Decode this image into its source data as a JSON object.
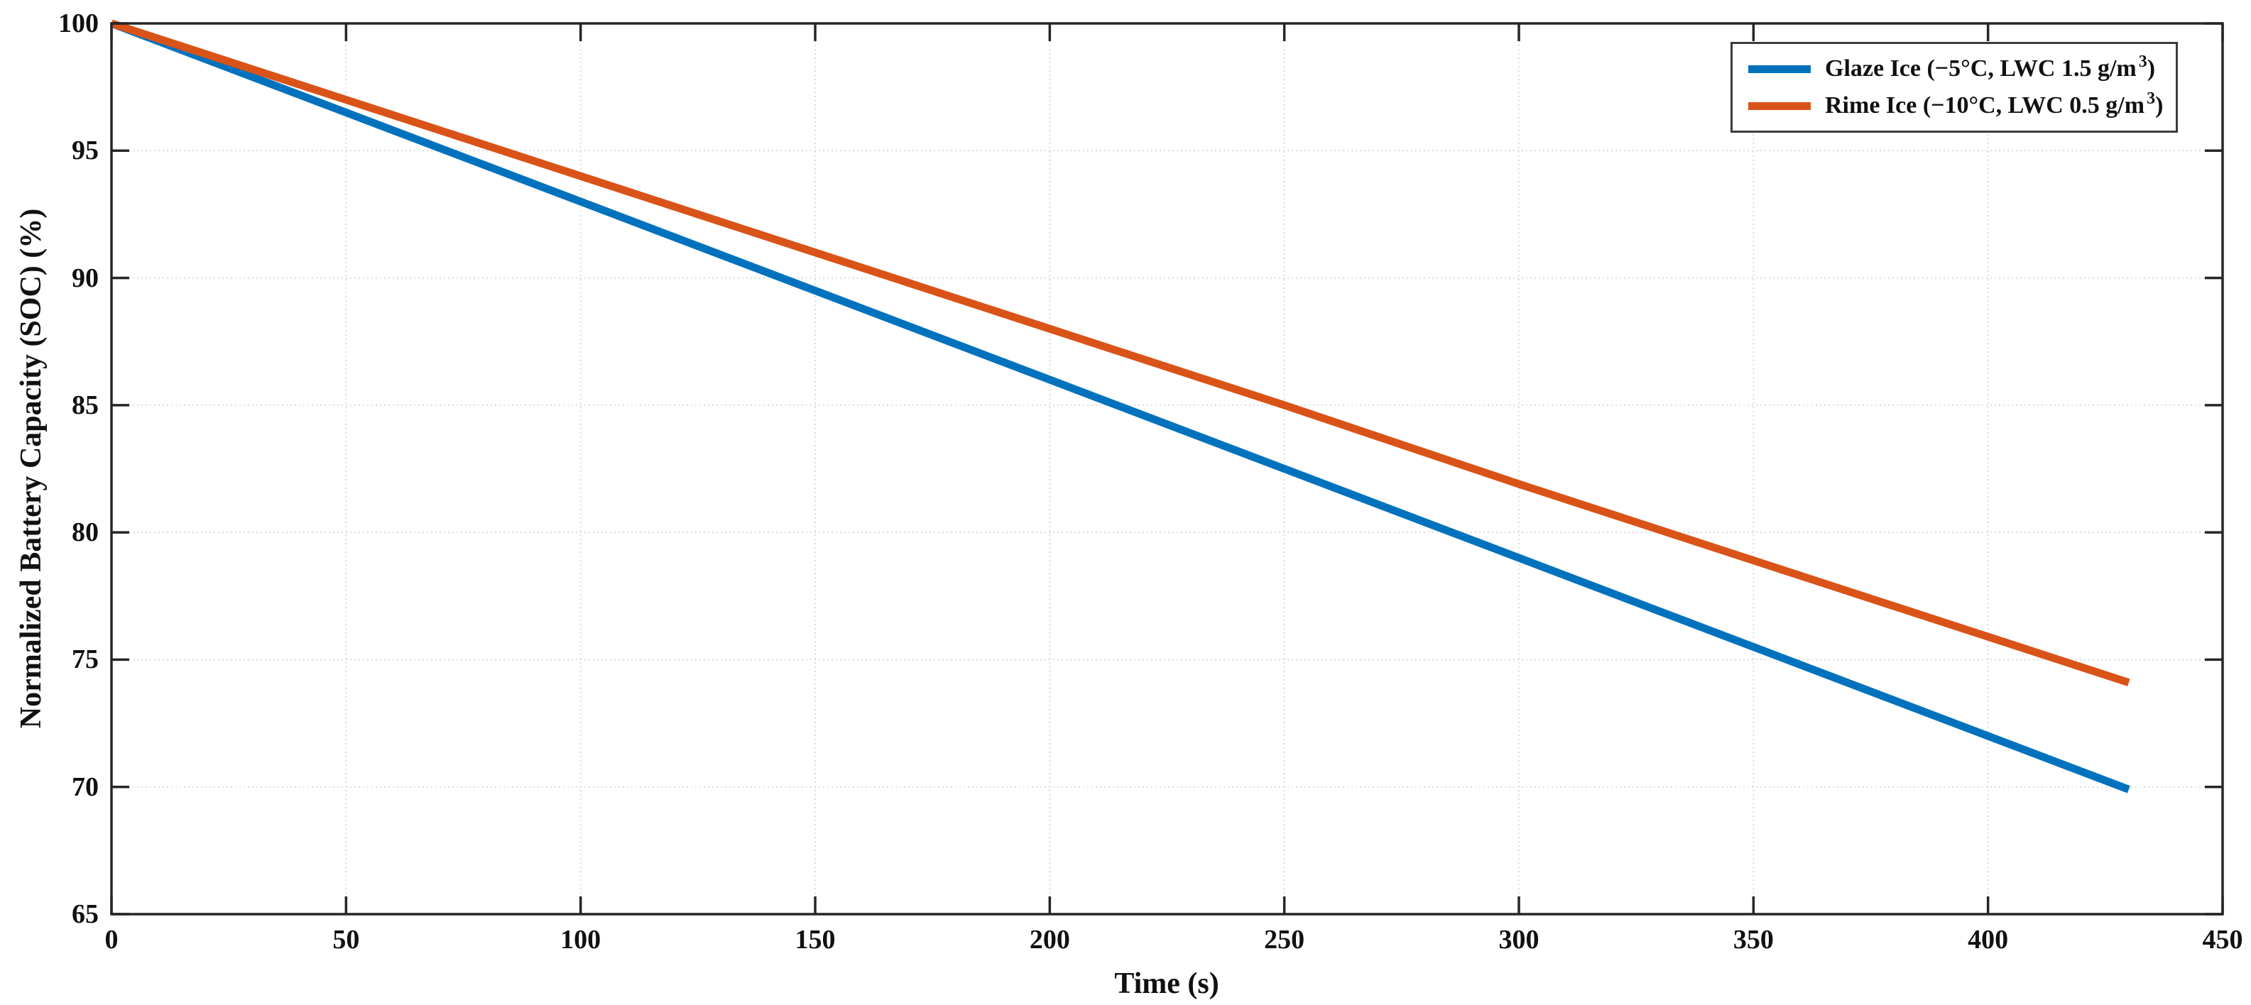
{
  "chart_data": {
    "type": "line",
    "title": "",
    "xlabel": "Time (s)",
    "ylabel": "Normalized Battery Capacity (SOC) (%)",
    "xlim": [
      0,
      450
    ],
    "ylim": [
      65,
      100
    ],
    "x_ticks": [
      0,
      50,
      100,
      150,
      200,
      250,
      300,
      350,
      400,
      450
    ],
    "y_ticks": [
      65,
      70,
      75,
      80,
      85,
      90,
      95,
      100
    ],
    "grid": true,
    "grid_style": "dotted",
    "grid_color": "#dcdcdc",
    "axis_color": "#262626",
    "legend_position": "top-right",
    "series": [
      {
        "name": "Glaze Ice (−5°C, LWC 1.5 g/m³)",
        "color": "#0072BD",
        "x": [
          0,
          50,
          100,
          150,
          200,
          250,
          300,
          350,
          400,
          430
        ],
        "y": [
          100,
          96.5,
          93.0,
          89.5,
          86.0,
          82.5,
          79.0,
          75.5,
          72.0,
          69.9
        ]
      },
      {
        "name": "Rime Ice (−10°C, LWC 0.5 g/m³)",
        "color": "#D95319",
        "x": [
          0,
          50,
          100,
          150,
          200,
          250,
          300,
          350,
          400,
          430
        ],
        "y": [
          100,
          97.0,
          94.0,
          91.0,
          88.0,
          85.0,
          81.9,
          78.9,
          75.9,
          74.1
        ]
      }
    ],
    "legend": [
      {
        "prefix": "Glaze Ice (−5°C, LWC 1.5 g/m",
        "sup": "3",
        "suffix": ")"
      },
      {
        "prefix": "Rime Ice (−10°C, LWC 0.5 g/m",
        "sup": "3",
        "suffix": ")"
      }
    ]
  }
}
